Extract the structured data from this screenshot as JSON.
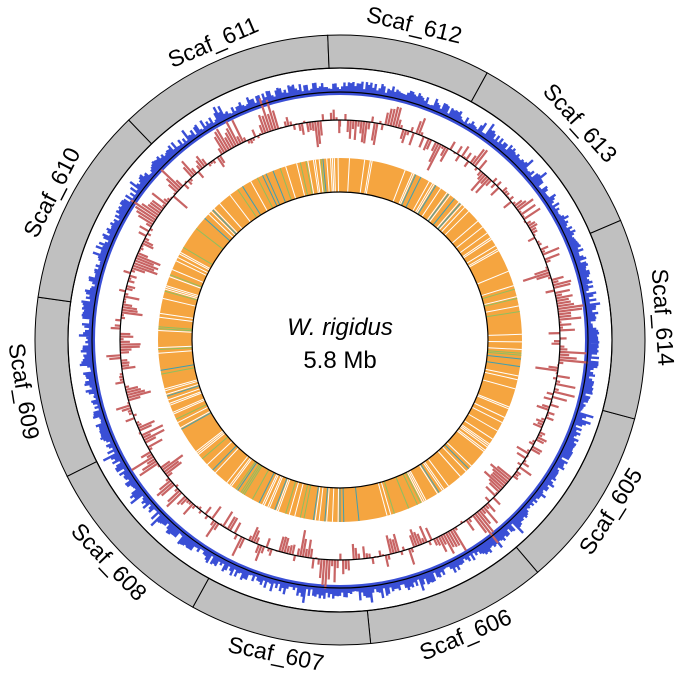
{
  "genome": {
    "species": "W. rigidus",
    "size": "5.8 Mb"
  },
  "scaffolds": [
    {
      "name": "Scaf_605",
      "fraction": 0.1
    },
    {
      "name": "Scaf_606",
      "fraction": 0.1
    },
    {
      "name": "Scaf_607",
      "fraction": 0.1
    },
    {
      "name": "Scaf_608",
      "fraction": 0.1
    },
    {
      "name": "Scaf_609",
      "fraction": 0.1
    },
    {
      "name": "Scaf_610",
      "fraction": 0.11
    },
    {
      "name": "Scaf_611",
      "fraction": 0.12
    },
    {
      "name": "Scaf_612",
      "fraction": 0.09
    },
    {
      "name": "Scaf_613",
      "fraction": 0.11
    },
    {
      "name": "Scaf_614",
      "fraction": 0.11
    }
  ],
  "colors": {
    "scaffold_ring": "#c0c0c0",
    "blue_track": "#3a4fd6",
    "red_track": "#c86464",
    "orange_track": "#f5a540",
    "green_marks": "#8fbf5f",
    "teal_marks": "#3f9fb0",
    "outline": "#000000"
  }
}
